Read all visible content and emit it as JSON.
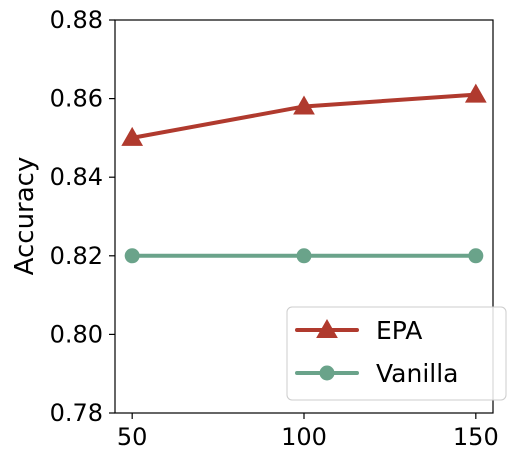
{
  "chart_data": {
    "type": "line",
    "x": [
      50,
      100,
      150
    ],
    "xticks": [
      "50",
      "100",
      "150"
    ],
    "xlim": [
      45,
      155
    ],
    "ylabel": "Accuracy",
    "ylim": [
      0.78,
      0.88
    ],
    "yticks": [
      "0.78",
      "0.80",
      "0.82",
      "0.84",
      "0.86",
      "0.88"
    ],
    "grid": false,
    "legend_position": "lower-right",
    "series": [
      {
        "name": "EPA",
        "values": [
          0.85,
          0.858,
          0.861
        ],
        "color": "#B03A2E",
        "marker": "triangle"
      },
      {
        "name": "Vanilla",
        "values": [
          0.82,
          0.82,
          0.82
        ],
        "color": "#6AA38A",
        "marker": "circle"
      }
    ]
  }
}
